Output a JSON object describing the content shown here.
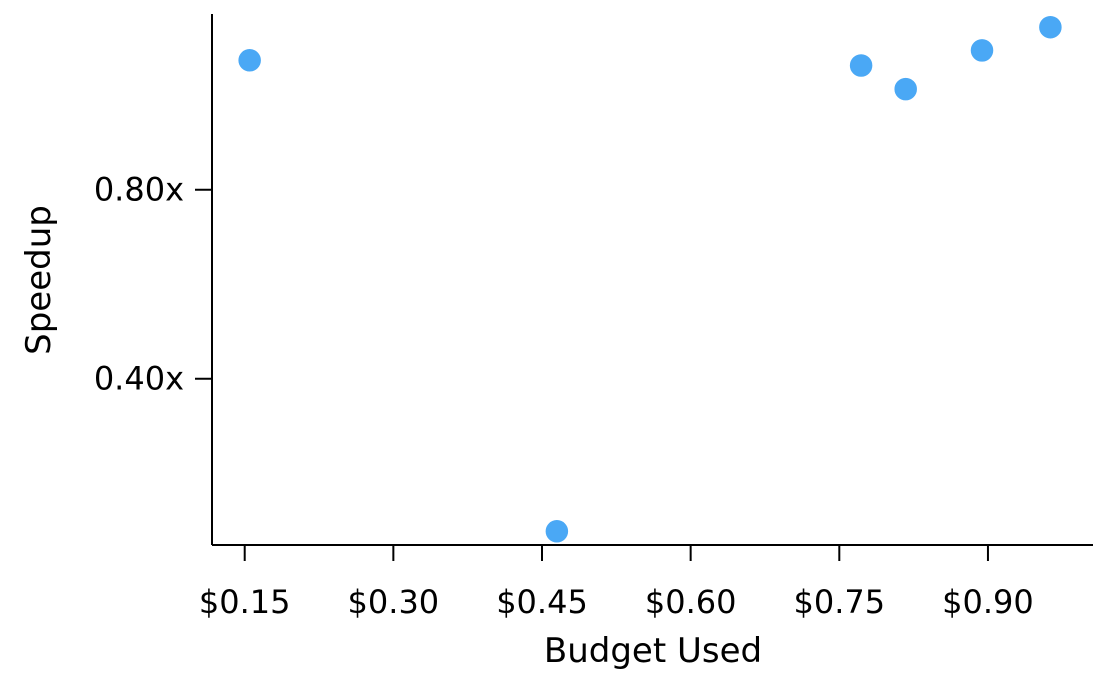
{
  "chart_data": {
    "type": "scatter",
    "title": "",
    "xlabel": "Budget Used",
    "ylabel": "Speedup",
    "xlim": [
      0.117,
      1.006
    ],
    "ylim": [
      0.048,
      1.172
    ],
    "x_ticks": [
      {
        "value": 0.15,
        "label": "$0.15"
      },
      {
        "value": 0.3,
        "label": "$0.30"
      },
      {
        "value": 0.45,
        "label": "$0.45"
      },
      {
        "value": 0.6,
        "label": "$0.60"
      },
      {
        "value": 0.75,
        "label": "$0.75"
      },
      {
        "value": 0.9,
        "label": "$0.90"
      }
    ],
    "y_ticks": [
      {
        "value": 0.4,
        "label": "0.40x"
      },
      {
        "value": 0.8,
        "label": "0.80x"
      }
    ],
    "grid": false,
    "legend": "none",
    "marker_color": "#4aa8f5",
    "points": [
      {
        "x": 0.155,
        "y": 1.074
      },
      {
        "x": 0.465,
        "y": 0.077
      },
      {
        "x": 0.772,
        "y": 1.063
      },
      {
        "x": 0.817,
        "y": 1.013
      },
      {
        "x": 0.894,
        "y": 1.095
      },
      {
        "x": 0.963,
        "y": 1.144
      }
    ]
  }
}
